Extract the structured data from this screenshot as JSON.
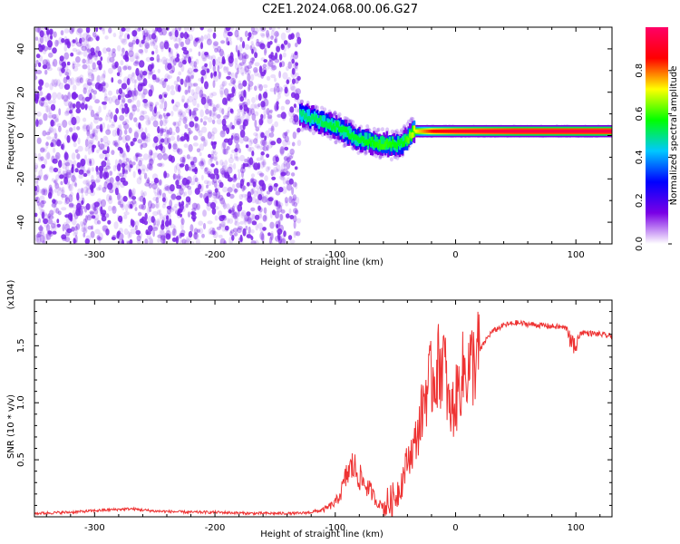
{
  "title": "C2E1.2024.068.00.06.G27",
  "chart_data": [
    {
      "type": "heatmap",
      "title": "C2E1.2024.068.00.06.G27",
      "xlabel": "Height of straight line (km)",
      "ylabel": "Frequency (Hz)",
      "xlim": [
        -350,
        130
      ],
      "ylim": [
        -50,
        50
      ],
      "x_ticks": [
        -300,
        -200,
        -100,
        0,
        100
      ],
      "y_ticks": [
        -40,
        -20,
        0,
        20,
        40
      ],
      "colorbar": {
        "label": "Normalized spectral amplitude",
        "range": [
          0,
          1
        ],
        "ticks": [
          "0.0",
          "0.2",
          "0.4",
          "0.6",
          "0.8"
        ],
        "colormap": "rainbow",
        "colors": [
          "#ffffff",
          "#7a00e6",
          "#0000ff",
          "#00c8ff",
          "#00ff00",
          "#ffff00",
          "#ff0000",
          "#ff0066"
        ]
      },
      "regions": [
        {
          "description": "noise",
          "x_range": [
            -350,
            -130
          ],
          "freq_range": [
            -50,
            50
          ],
          "amplitude": "0.0-0.15"
        },
        {
          "description": "signal",
          "points": [
            {
              "x": -130,
              "freq": 10,
              "amplitude": 0.5
            },
            {
              "x": -100,
              "freq": 4,
              "amplitude": 0.55
            },
            {
              "x": -80,
              "freq": -2,
              "amplitude": 0.55
            },
            {
              "x": -60,
              "freq": -4,
              "amplitude": 0.6
            },
            {
              "x": -45,
              "freq": -4,
              "amplitude": 0.55
            },
            {
              "x": -35,
              "freq": 2,
              "amplitude": 0.7
            },
            {
              "x": -20,
              "freq": 2,
              "amplitude": 0.85
            },
            {
              "x": 0,
              "freq": 2,
              "amplitude": 0.9
            },
            {
              "x": 50,
              "freq": 2,
              "amplitude": 0.95
            },
            {
              "x": 130,
              "freq": 2,
              "amplitude": 0.95
            }
          ]
        }
      ]
    },
    {
      "type": "line",
      "xlabel": "Height of straight line (km)",
      "ylabel": "SNR (10 * v/v)",
      "y_multiplier": "(x10^4)",
      "xlim": [
        -350,
        130
      ],
      "ylim": [
        0,
        1.9
      ],
      "x_ticks": [
        -300,
        -200,
        -100,
        0,
        100
      ],
      "y_ticks": [
        "0.5",
        "1.0",
        "1.5"
      ],
      "series": [
        {
          "color": "#ee3333",
          "x": [
            -350,
            -320,
            -290,
            -270,
            -250,
            -220,
            -200,
            -170,
            -150,
            -130,
            -120,
            -110,
            -100,
            -95,
            -90,
            -85,
            -80,
            -75,
            -70,
            -65,
            -60,
            -55,
            -50,
            -45,
            -40,
            -35,
            -30,
            -25,
            -20,
            -15,
            -10,
            -5,
            0,
            5,
            10,
            15,
            20,
            25,
            30,
            40,
            50,
            60,
            70,
            80,
            90,
            95,
            100,
            105,
            110,
            120,
            130
          ],
          "y": [
            0.03,
            0.04,
            0.06,
            0.07,
            0.05,
            0.04,
            0.04,
            0.03,
            0.03,
            0.03,
            0.04,
            0.06,
            0.12,
            0.22,
            0.38,
            0.45,
            0.35,
            0.28,
            0.22,
            0.12,
            0.1,
            0.12,
            0.18,
            0.3,
            0.5,
            0.6,
            0.8,
            1.1,
            1.2,
            1.3,
            1.4,
            0.9,
            1.0,
            1.25,
            1.3,
            1.35,
            1.45,
            1.55,
            1.62,
            1.68,
            1.7,
            1.69,
            1.68,
            1.67,
            1.66,
            1.64,
            1.55,
            1.62,
            1.61,
            1.6,
            1.58
          ]
        }
      ]
    }
  ]
}
